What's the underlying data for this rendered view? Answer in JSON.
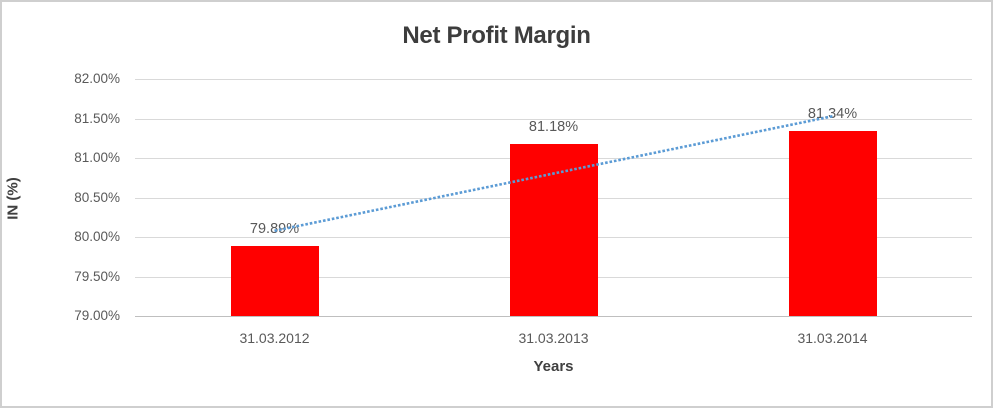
{
  "chart_data": {
    "type": "bar",
    "title": "Net Profit Margin",
    "categories": [
      "31.03.2012",
      "31.03.2013",
      "31.03.2014"
    ],
    "values": [
      79.89,
      81.18,
      81.34
    ],
    "data_labels": [
      "79.89%",
      "81.18%",
      "81.34%"
    ],
    "xlabel": "Years",
    "ylabel": "IN (%)",
    "ylim": [
      79.0,
      82.0
    ],
    "ytick_interval": 0.5,
    "ytick_labels_top_to_bottom": [
      "82.00%",
      "81.50%",
      "81.00%",
      "80.50%",
      "80.00%",
      "79.50%",
      "79.00%"
    ],
    "grid": "horizontal",
    "legend": "none",
    "bar_color": "#ff0000",
    "trendline": {
      "type": "linear",
      "style": "dotted",
      "color": "#5b9bd5",
      "fit_values_at_categories": [
        80.078,
        80.803,
        81.528
      ]
    },
    "colors": {
      "title_text": "#3d3d3d",
      "axis_title_text": "#404040",
      "tick_label_text": "#595959",
      "gridline": "#d9d9d9",
      "axis_line": "#bfbfbf",
      "chart_border": "#cfcfcf",
      "background": "#ffffff"
    }
  }
}
